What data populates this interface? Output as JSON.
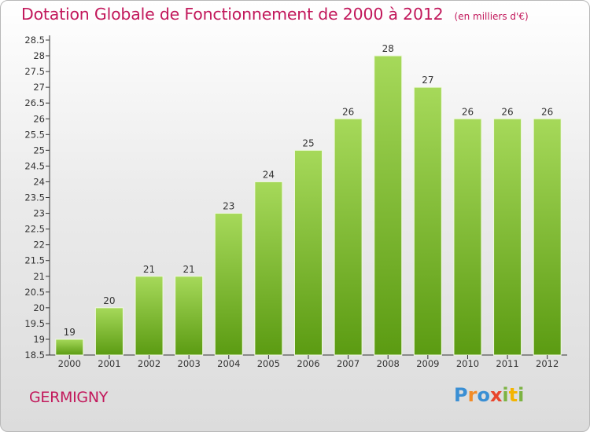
{
  "header": {
    "title": "Dotation Globale de Fonctionnement de 2000 à 2012",
    "unit": "(en milliers d'€)"
  },
  "commune": "GERMIGNY",
  "brand": {
    "letters": [
      "P",
      "r",
      "o",
      "x",
      "i",
      "t",
      "i"
    ],
    "letter_colors": [
      "#3a8fd4",
      "#f28c28",
      "#3a8fd4",
      "#e8452c",
      "#7cb342",
      "#f4b400",
      "#7cb342"
    ]
  },
  "colors": {
    "title": "#c2185b",
    "bar_light": "#a6d95a",
    "bar_dark": "#5b9b12"
  },
  "chart_data": {
    "type": "bar",
    "categories": [
      "2000",
      "2001",
      "2002",
      "2003",
      "2004",
      "2005",
      "2006",
      "2007",
      "2008",
      "2009",
      "2010",
      "2011",
      "2012"
    ],
    "values": [
      19,
      20,
      21,
      21,
      23,
      24,
      25,
      26,
      28,
      27,
      26,
      26,
      26
    ],
    "title": "Dotation Globale de Fonctionnement de 2000 à 2012",
    "ylim": [
      18.5,
      28.5
    ],
    "ytick_step": 0.5,
    "grid": false,
    "data_labels": true
  }
}
